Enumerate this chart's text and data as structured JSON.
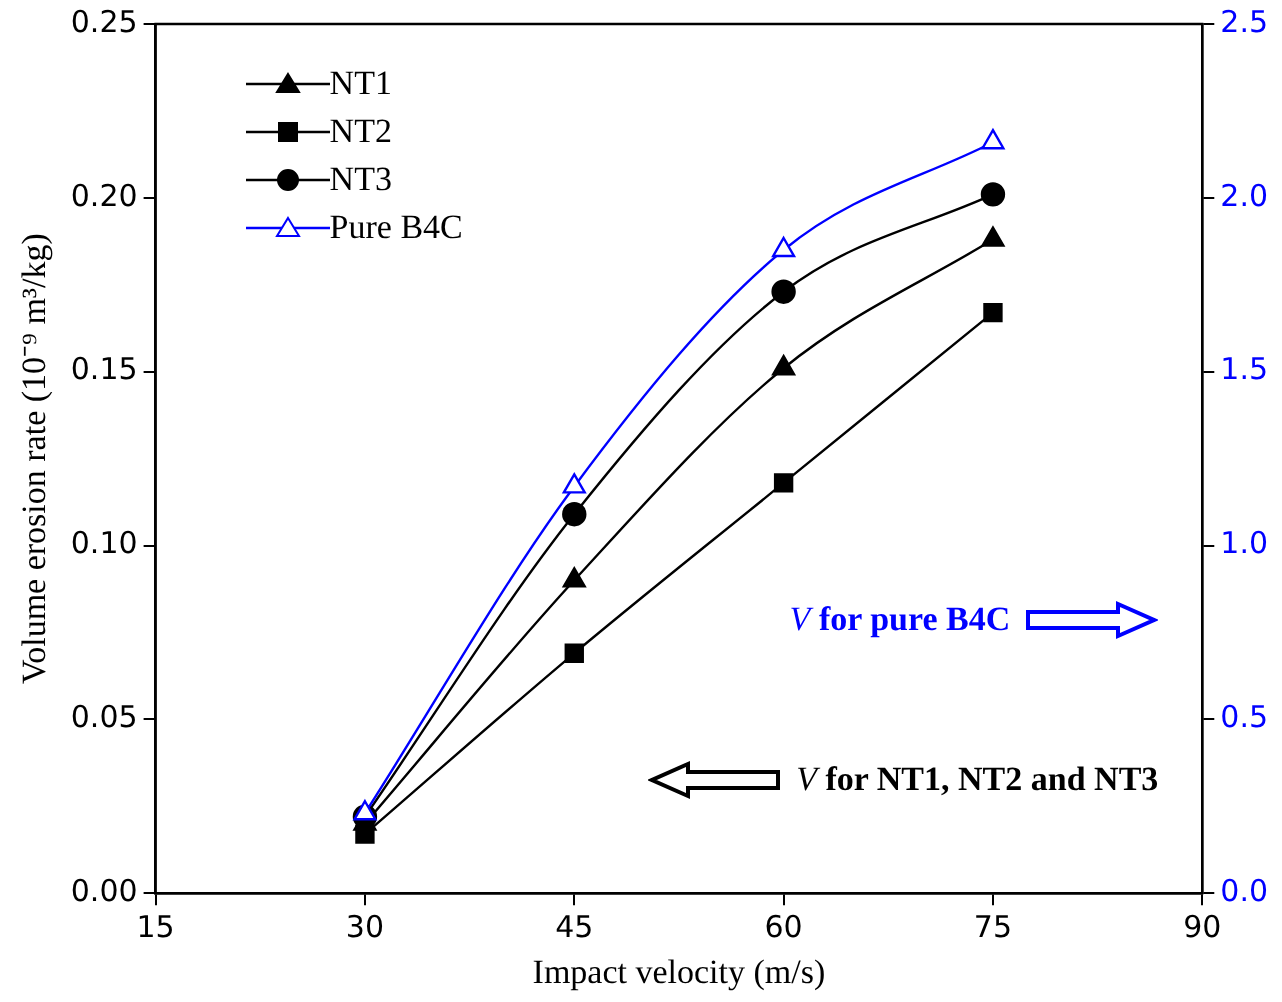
{
  "chart_data": {
    "type": "line",
    "xlabel": "Impact velocity (m/s)",
    "ylabel": "Volume erosion rate (10⁻⁹ m³/kg)",
    "x": [
      30,
      45,
      60,
      75
    ],
    "xlim": [
      15,
      90
    ],
    "xticks": [
      15,
      30,
      45,
      60,
      75,
      90
    ],
    "ylim": [
      0,
      0.25
    ],
    "yticks": [
      {
        "value": 0,
        "label": "0.00"
      },
      {
        "value": 0.05,
        "label": "0.05"
      },
      {
        "value": 0.1,
        "label": "0.10"
      },
      {
        "value": 0.15,
        "label": "0.15"
      },
      {
        "value": 0.2,
        "label": "0.20"
      },
      {
        "value": 0.25,
        "label": "0.25"
      }
    ],
    "y2lim": [
      0,
      2.5
    ],
    "y2ticks": [
      {
        "value": 0,
        "label": "0.0"
      },
      {
        "value": 0.5,
        "label": "0.5"
      },
      {
        "value": 1,
        "label": "1.0"
      },
      {
        "value": 1.5,
        "label": "1.5"
      },
      {
        "value": 2,
        "label": "2.0"
      },
      {
        "value": 2.5,
        "label": "2.5"
      }
    ],
    "series": [
      {
        "name": "NT1",
        "color": "#000000",
        "marker": "triangle",
        "values": [
          0.02,
          0.09,
          0.151,
          0.188
        ]
      },
      {
        "name": "NT2",
        "color": "#000000",
        "marker": "square",
        "values": [
          0.017,
          0.069,
          0.118,
          0.167
        ]
      },
      {
        "name": "NT3",
        "color": "#000000",
        "marker": "circle",
        "values": [
          0.022,
          0.109,
          0.173,
          0.201
        ]
      },
      {
        "name": "Pure B4C",
        "color": "#0000ff",
        "marker": "triangle",
        "axis": "y2",
        "values": [
          0.23,
          1.17,
          1.85,
          2.16
        ]
      }
    ],
    "annotations": [
      "V for pure B4C",
      "V for NT1, NT2 and NT3"
    ],
    "grid": false,
    "legend": "top left",
    "line_style": "solid"
  }
}
